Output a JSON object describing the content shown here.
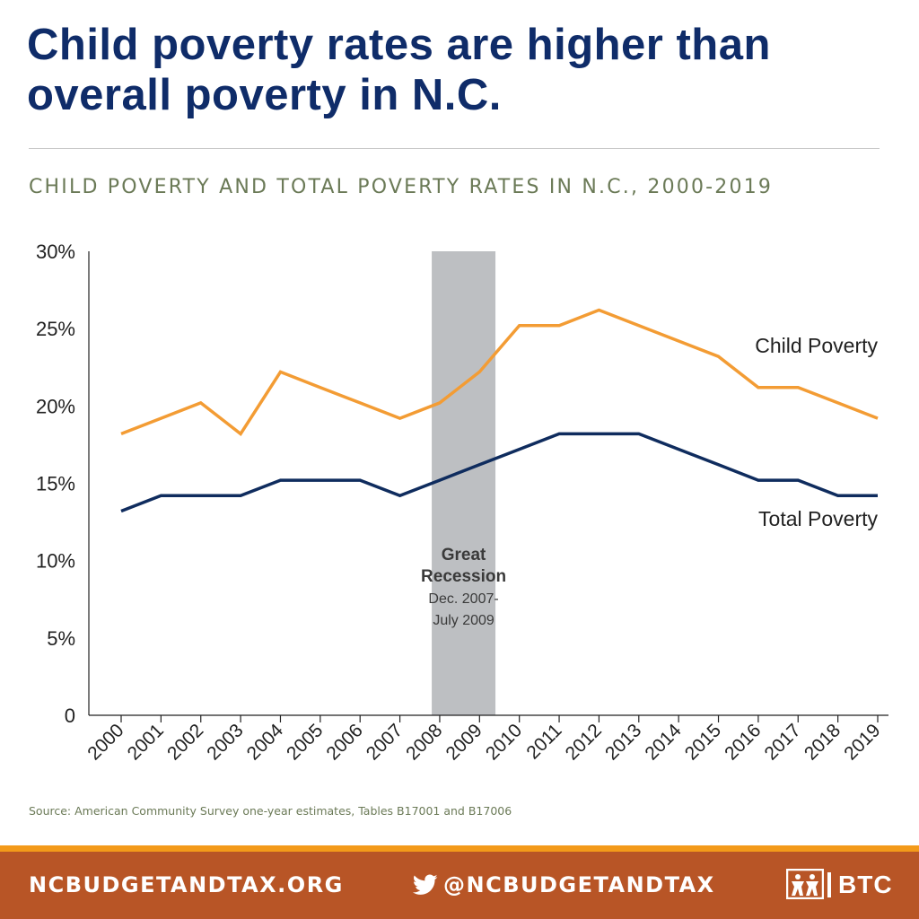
{
  "headline": "Child poverty rates are higher than overall poverty in N.C.",
  "chart_data": {
    "type": "line",
    "title": "CHILD POVERTY AND TOTAL POVERTY RATES IN N.C., 2000-2019",
    "xlabel": "",
    "ylabel": "",
    "x": [
      "2000",
      "2001",
      "2002",
      "2003",
      "2004",
      "2005",
      "2006",
      "2007",
      "2008",
      "2009",
      "2010",
      "2011",
      "2012",
      "2013",
      "2014",
      "2015",
      "2016",
      "2017",
      "2018",
      "2019"
    ],
    "ylim": [
      0,
      30
    ],
    "yticks": [
      0,
      5,
      10,
      15,
      20,
      25,
      30
    ],
    "ytick_labels": [
      "0",
      "5%",
      "10%",
      "15%",
      "20%",
      "25%",
      "30%"
    ],
    "series": [
      {
        "name": "Child Poverty",
        "color": "#f39c34",
        "values": [
          18.2,
          19.2,
          20.2,
          18.2,
          22.2,
          21.2,
          20.2,
          19.2,
          20.2,
          22.2,
          25.2,
          25.2,
          26.2,
          25.2,
          24.2,
          23.2,
          21.2,
          21.2,
          20.2,
          19.2
        ]
      },
      {
        "name": "Total Poverty",
        "color": "#0f2c5e",
        "values": [
          13.2,
          14.2,
          14.2,
          14.2,
          15.2,
          15.2,
          15.2,
          14.2,
          15.2,
          16.2,
          17.2,
          18.2,
          18.2,
          18.2,
          17.2,
          16.2,
          15.2,
          15.2,
          14.2,
          14.2
        ]
      }
    ],
    "shaded_band": {
      "start_year": 2007.8,
      "end_year": 2009.4,
      "color": "#bdbfc2",
      "label_title": "Great Recession",
      "label_sub1": "Dec. 2007-",
      "label_sub2": "July 2009"
    }
  },
  "source": "Source: American Community Survey one-year estimates, Tables B17001 and B17006",
  "footer": {
    "site": "NCBUDGETANDTAX.ORG",
    "twitter": "@NCBUDGETANDTAX",
    "logo_text": "BTC",
    "band_color": "#b85526",
    "accent_color": "#f39a1a"
  }
}
